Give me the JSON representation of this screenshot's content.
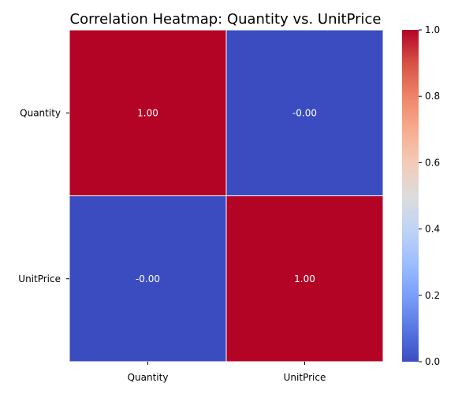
{
  "chart_data": {
    "type": "heatmap",
    "title": "Correlation Heatmap: Quantity vs. UnitPrice",
    "x_labels": [
      "Quantity",
      "UnitPrice"
    ],
    "y_labels": [
      "Quantity",
      "UnitPrice"
    ],
    "values": [
      [
        1.0,
        -0.0
      ],
      [
        -0.0,
        1.0
      ]
    ],
    "annotations": [
      [
        "1.00",
        "-0.00"
      ],
      [
        "-0.00",
        "1.00"
      ]
    ],
    "colorscale": "coolwarm",
    "colorbar": {
      "range": [
        0.0,
        1.0
      ],
      "ticks": [
        0.0,
        0.2,
        0.4,
        0.6,
        0.8,
        1.0
      ],
      "tick_labels": [
        "0.0",
        "0.2",
        "0.4",
        "0.6",
        "0.8",
        "1.0"
      ]
    },
    "colors": {
      "low": "#3b4cc0",
      "high": "#b40426",
      "cell_text": "#ffffff",
      "grid_line": "#ffffff"
    }
  }
}
